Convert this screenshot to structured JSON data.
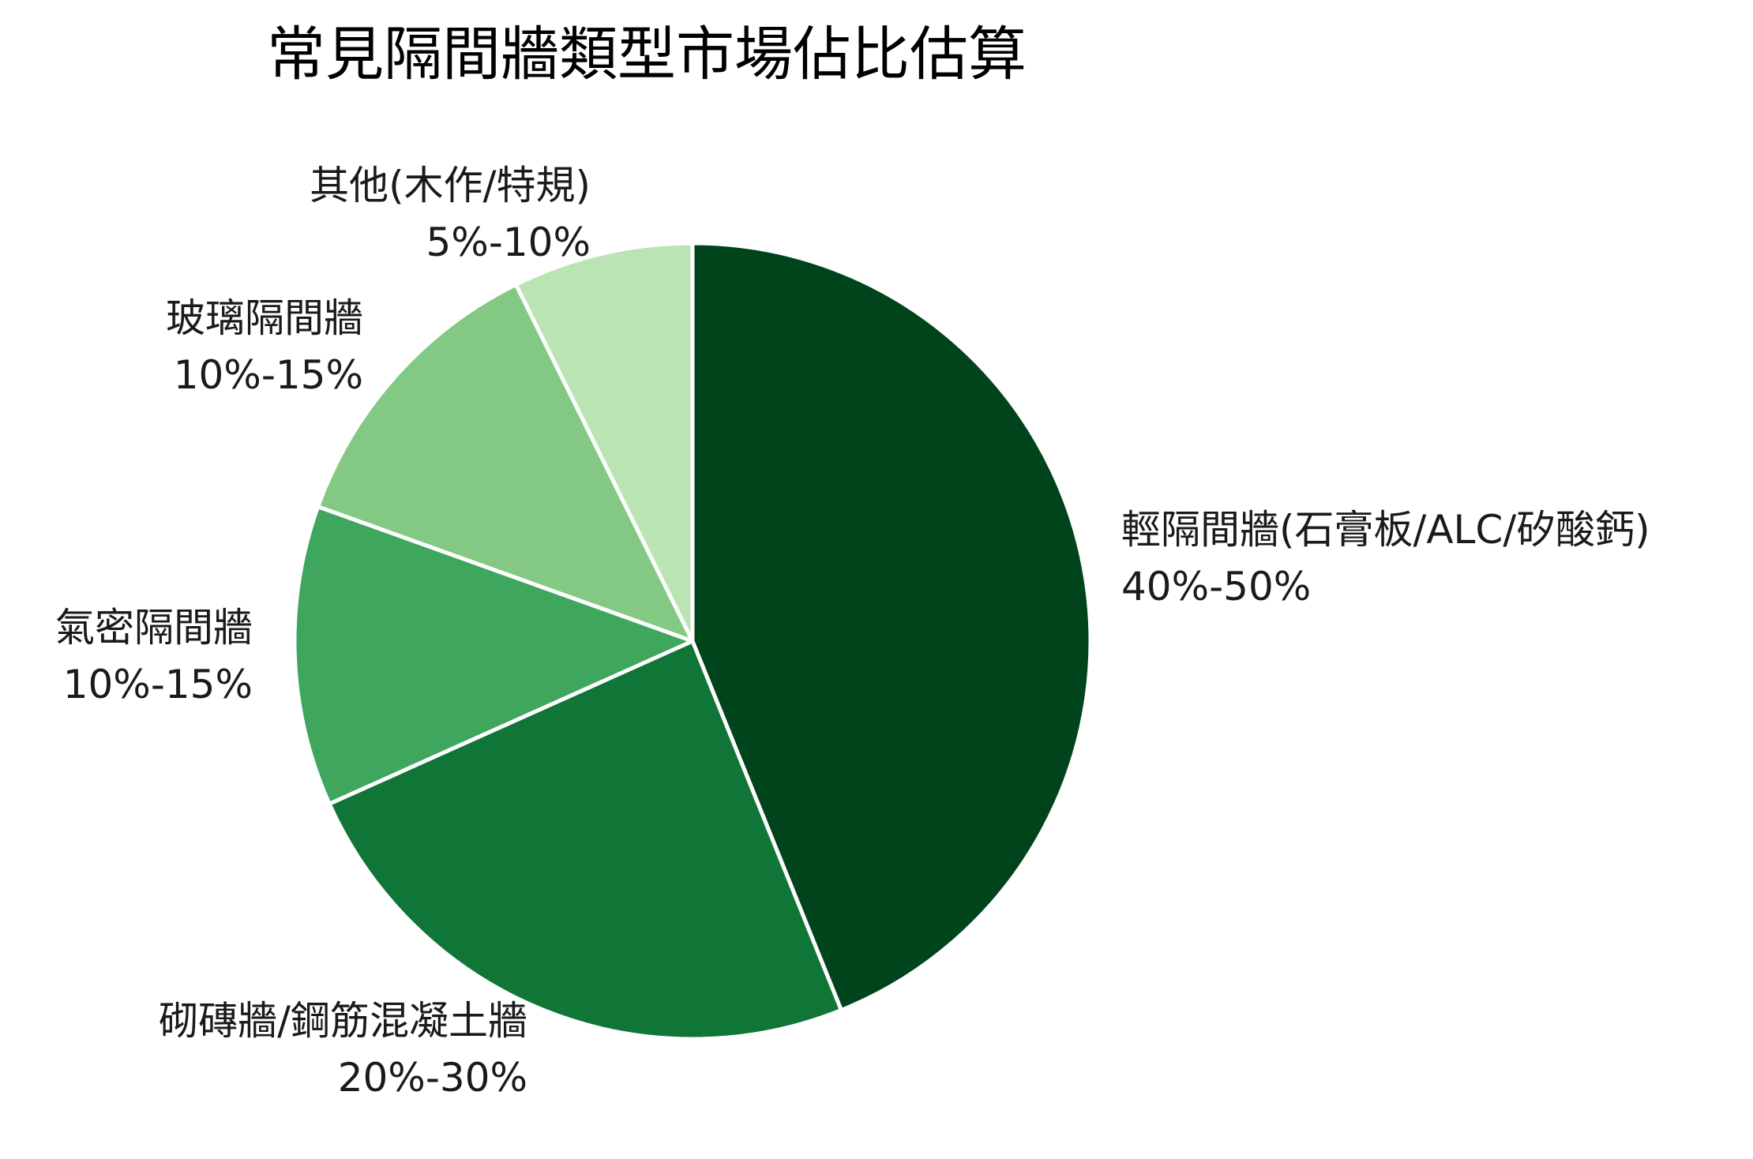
{
  "chart_data": {
    "type": "pie",
    "title": "常見隔間牆類型市場佔比估算",
    "slices": [
      {
        "name": "輕隔間牆(石膏板/ALC/矽酸鈣)",
        "range_label": "40%-50%",
        "value": 45,
        "color": "#00441b"
      },
      {
        "name": "砌磚牆/鋼筋混凝土牆",
        "range_label": "20%-30%",
        "value": 25,
        "color": "#0f7637"
      },
      {
        "name": "氣密隔間牆",
        "range_label": "10%-15%",
        "value": 12.5,
        "color": "#3fa65d"
      },
      {
        "name": "玻璃隔間牆",
        "range_label": "10%-15%",
        "value": 12.5,
        "color": "#83c883"
      },
      {
        "name": "其他(木作/特規)",
        "range_label": "5%-10%",
        "value": 7.5,
        "color": "#bae4b4"
      }
    ],
    "start_angle": "top",
    "direction": "clockwise"
  }
}
